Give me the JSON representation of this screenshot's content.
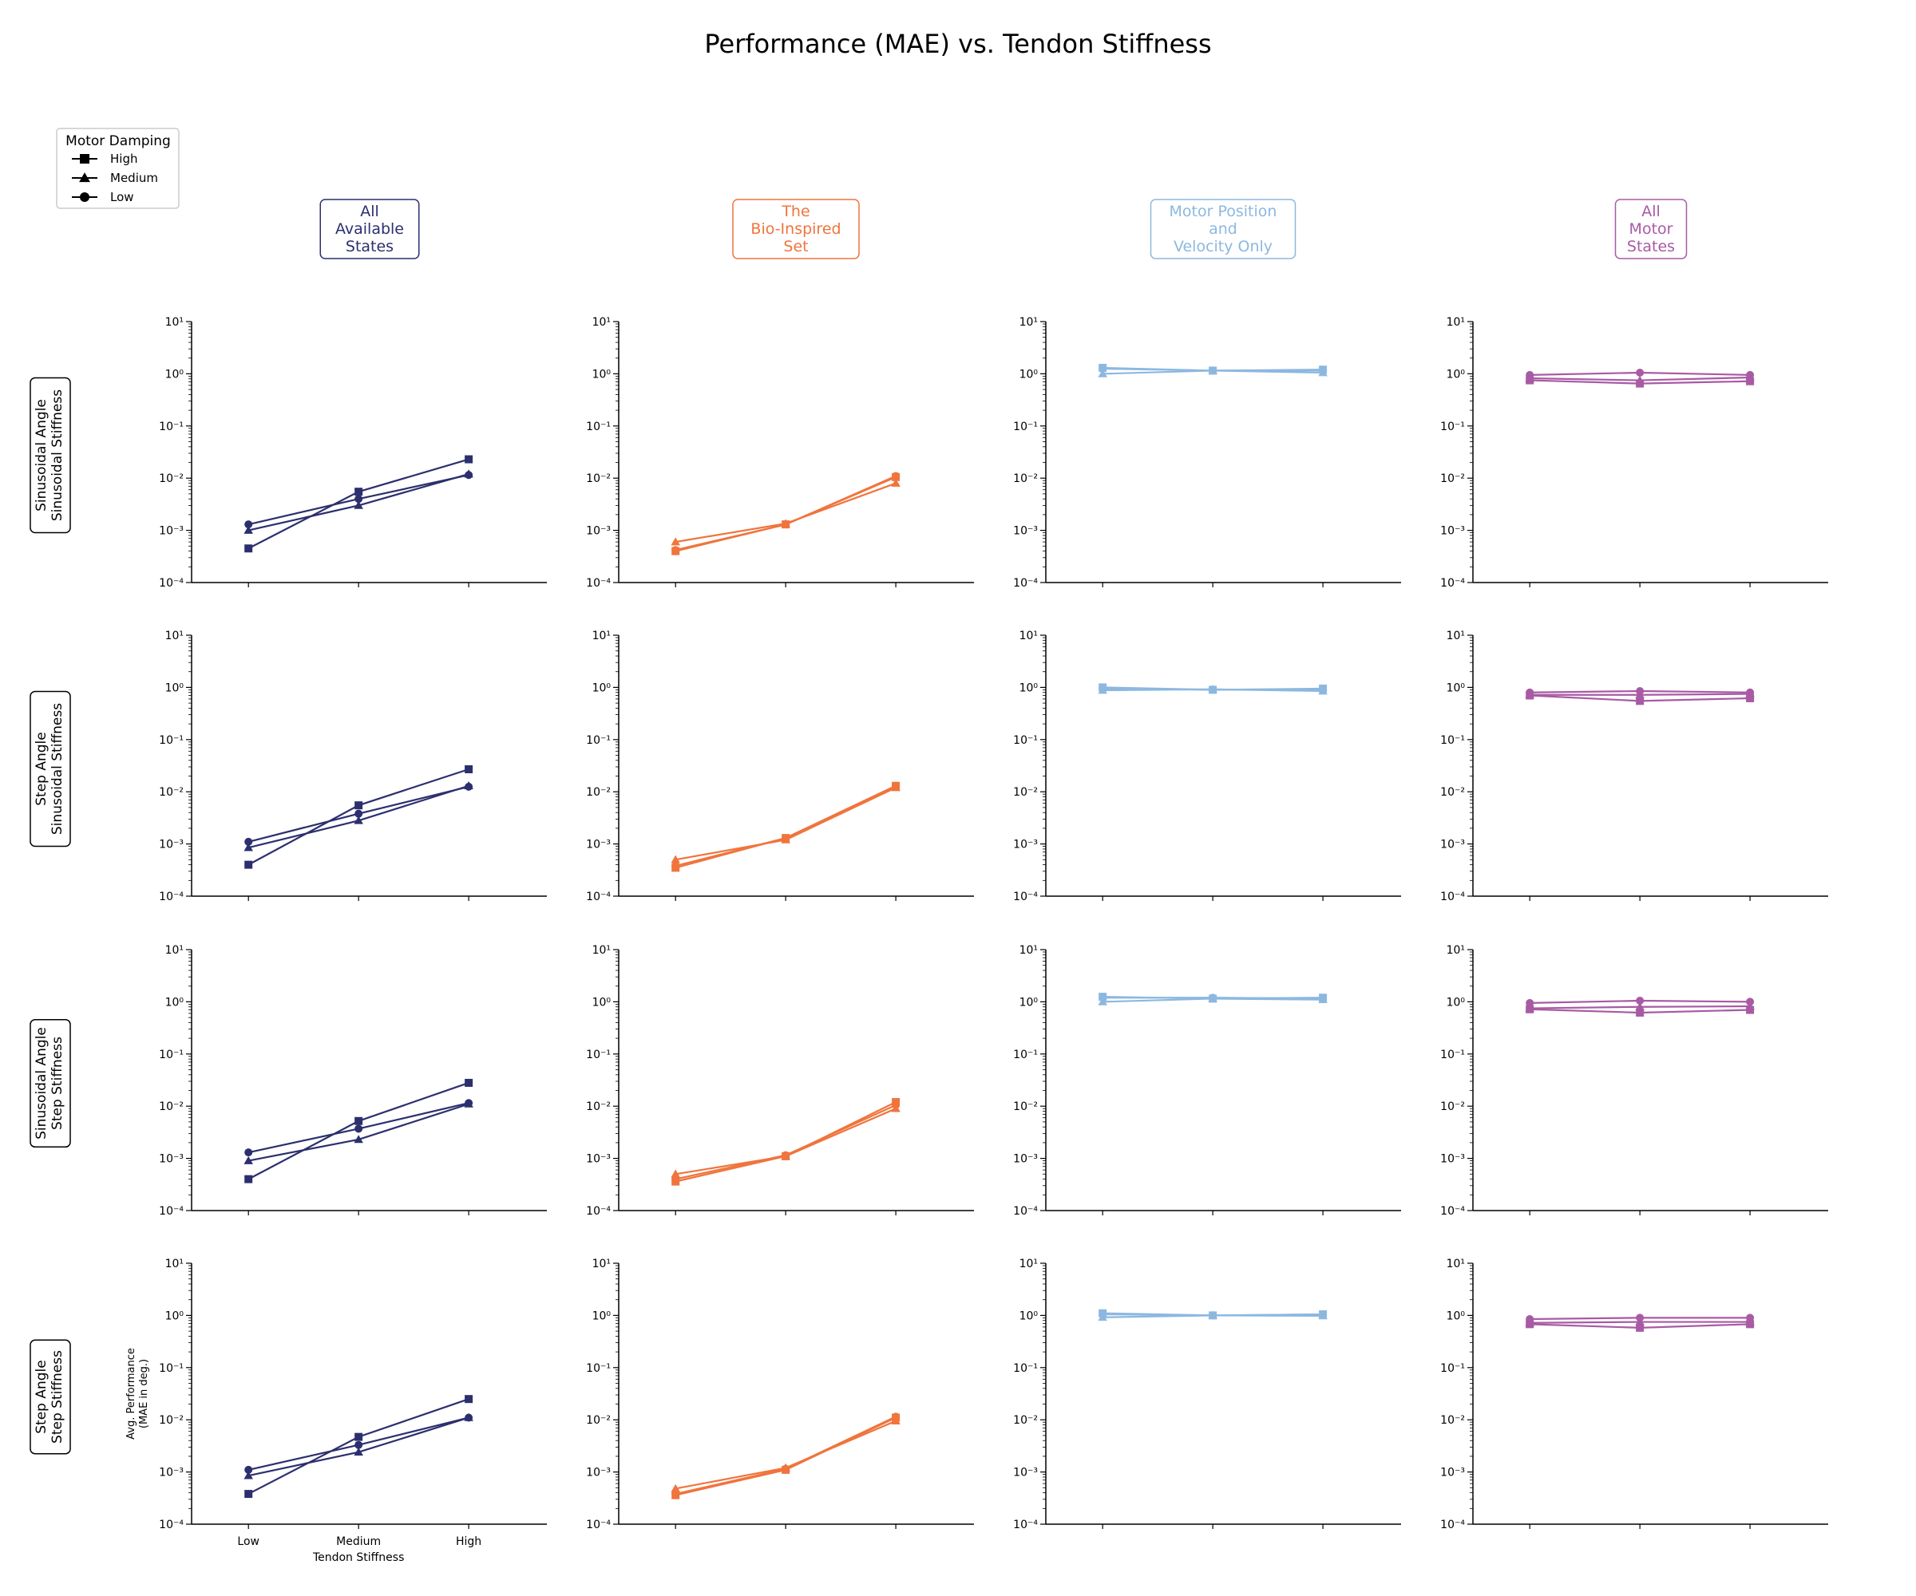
{
  "figure": {
    "title": "Performance (MAE) vs. Tendon Stiffness",
    "legend": {
      "title": "Motor Damping",
      "placement": "top-left",
      "entries": [
        {
          "label": "High",
          "marker": "square"
        },
        {
          "label": "Medium",
          "marker": "triangle"
        },
        {
          "label": "Low",
          "marker": "circle"
        }
      ]
    },
    "columns": [
      {
        "lines": [
          "All",
          "Available",
          "States"
        ],
        "color": "#2c2f6e"
      },
      {
        "lines": [
          "The",
          "Bio-Inspired",
          "Set"
        ],
        "color": "#f0743c"
      },
      {
        "lines": [
          "Motor Position",
          "and",
          "Velocity Only"
        ],
        "color": "#8cb8e0"
      },
      {
        "lines": [
          "All",
          "Motor",
          "States"
        ],
        "color": "#a85aa4"
      }
    ],
    "rows": [
      {
        "lines": [
          "Sinusoidal Angle",
          "Sinusoidal Stiffness"
        ]
      },
      {
        "lines": [
          "Step Angle",
          "Sinusoidal Stiffness"
        ]
      },
      {
        "lines": [
          "Sinusoidal Angle",
          "Step Stiffness"
        ]
      },
      {
        "lines": [
          "Step Angle",
          "Step Stiffness"
        ]
      }
    ],
    "xlabel": "Tendon Stiffness",
    "ylabel_lines": [
      "Avg. Performance",
      "(MAE in deg.)"
    ]
  },
  "chart_data": {
    "type": "line",
    "x_categories": [
      "Low",
      "Medium",
      "High"
    ],
    "y_scale": "log",
    "ylim": [
      0.0001,
      10
    ],
    "y_tick_labels": [
      "10⁻⁴",
      "10⁻³",
      "10⁻²",
      "10⁻¹",
      "10⁰",
      "10¹"
    ],
    "y_tick_values": [
      0.0001,
      0.001,
      0.01,
      0.1,
      1,
      10
    ],
    "grid": false,
    "series_order": [
      "High",
      "Medium",
      "Low"
    ],
    "panels": [
      [
        {
          "High": [
            0.00045,
            0.0055,
            0.023
          ],
          "Medium": [
            0.001,
            0.003,
            0.012
          ],
          "Low": [
            0.0013,
            0.004,
            0.0115
          ]
        },
        {
          "High": [
            0.0004,
            0.0013,
            0.0105
          ],
          "Medium": [
            0.0006,
            0.00135,
            0.008
          ],
          "Low": [
            0.00042,
            0.0013,
            0.011
          ]
        },
        {
          "High": [
            1.3,
            1.15,
            1.2
          ],
          "Medium": [
            1.0,
            1.15,
            1.05
          ],
          "Low": [
            1.25,
            1.15,
            1.15
          ]
        },
        {
          "High": [
            0.75,
            0.65,
            0.72
          ],
          "Medium": [
            0.82,
            0.75,
            0.85
          ],
          "Low": [
            0.95,
            1.05,
            0.95
          ]
        }
      ],
      [
        {
          "High": [
            0.0004,
            0.0055,
            0.027
          ],
          "Medium": [
            0.00085,
            0.0028,
            0.013
          ],
          "Low": [
            0.0011,
            0.0038,
            0.0125
          ]
        },
        {
          "High": [
            0.00035,
            0.0013,
            0.013
          ],
          "Medium": [
            0.0005,
            0.0012,
            0.012
          ],
          "Low": [
            0.00038,
            0.0013,
            0.013
          ]
        },
        {
          "High": [
            1.0,
            0.9,
            0.95
          ],
          "Medium": [
            0.88,
            0.92,
            0.85
          ],
          "Low": [
            0.95,
            0.9,
            0.9
          ]
        },
        {
          "High": [
            0.7,
            0.55,
            0.62
          ],
          "Medium": [
            0.72,
            0.72,
            0.75
          ],
          "Low": [
            0.8,
            0.85,
            0.8
          ]
        }
      ],
      [
        {
          "High": [
            0.0004,
            0.0052,
            0.028
          ],
          "Medium": [
            0.0009,
            0.0023,
            0.011
          ],
          "Low": [
            0.0013,
            0.0037,
            0.0115
          ]
        },
        {
          "High": [
            0.00036,
            0.0011,
            0.012
          ],
          "Medium": [
            0.0005,
            0.0011,
            0.009
          ],
          "Low": [
            0.0004,
            0.00115,
            0.0105
          ]
        },
        {
          "High": [
            1.25,
            1.15,
            1.2
          ],
          "Medium": [
            1.0,
            1.15,
            1.1
          ],
          "Low": [
            1.2,
            1.2,
            1.15
          ]
        },
        {
          "High": [
            0.72,
            0.62,
            0.7
          ],
          "Medium": [
            0.75,
            0.8,
            0.82
          ],
          "Low": [
            0.95,
            1.05,
            1.0
          ]
        }
      ],
      [
        {
          "High": [
            0.00038,
            0.0047,
            0.025
          ],
          "Medium": [
            0.00085,
            0.0024,
            0.011
          ],
          "Low": [
            0.0011,
            0.0033,
            0.011
          ]
        },
        {
          "High": [
            0.00036,
            0.0011,
            0.011
          ],
          "Medium": [
            0.00048,
            0.0012,
            0.0095
          ],
          "Low": [
            0.00038,
            0.00115,
            0.0115
          ]
        },
        {
          "High": [
            1.1,
            1.0,
            1.05
          ],
          "Medium": [
            0.92,
            1.0,
            0.98
          ],
          "Low": [
            1.05,
            1.0,
            1.05
          ]
        },
        {
          "High": [
            0.68,
            0.58,
            0.68
          ],
          "Medium": [
            0.72,
            0.75,
            0.75
          ],
          "Low": [
            0.85,
            0.9,
            0.9
          ]
        }
      ]
    ]
  }
}
